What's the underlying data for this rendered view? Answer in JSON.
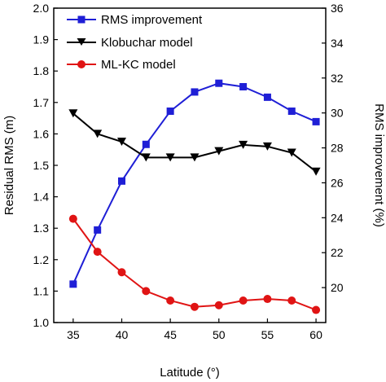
{
  "chart_data": {
    "type": "line",
    "xlabel": "Latitude (°)",
    "ylabel_left": "Residual RMS (m)",
    "ylabel_right": "RMS improvement (%)",
    "xlim": [
      33,
      61
    ],
    "ylim_left": [
      1.0,
      2.0
    ],
    "ylim_right": [
      18,
      36
    ],
    "x_ticks": [
      35,
      40,
      45,
      50,
      55,
      60
    ],
    "y_ticks_left": [
      1.0,
      1.1,
      1.2,
      1.3,
      1.4,
      1.5,
      1.6,
      1.7,
      1.8,
      1.9,
      2.0
    ],
    "y_ticks_right": [
      20,
      22,
      24,
      26,
      28,
      30,
      32,
      34,
      36
    ],
    "y_tick_labels_left": [
      "1.0",
      "1.1",
      "1.2",
      "1.3",
      "1.4",
      "1.5",
      "1.6",
      "1.7",
      "1.8",
      "1.9",
      "2.0"
    ],
    "y_tick_labels_right": [
      "20",
      "22",
      "24",
      "26",
      "28",
      "30",
      "32",
      "34",
      "36"
    ],
    "x_tick_labels": [
      "35",
      "40",
      "45",
      "50",
      "55",
      "60"
    ],
    "grid": false,
    "legend_position": "top-left",
    "x": [
      35,
      37.5,
      40,
      42.5,
      45,
      47.5,
      50,
      52.5,
      55,
      57.5,
      60
    ],
    "series": [
      {
        "name": "RMS improvement",
        "axis": "right",
        "marker": "square",
        "color": "#1f1fd6",
        "values": [
          20.2,
          23.3,
          26.1,
          28.2,
          30.1,
          31.2,
          31.7,
          31.5,
          30.9,
          30.1,
          29.5
        ]
      },
      {
        "name": "Klobuchar model",
        "axis": "left",
        "marker": "triangle-down",
        "color": "#000000",
        "values": [
          1.665,
          1.6,
          1.575,
          1.525,
          1.525,
          1.525,
          1.545,
          1.565,
          1.56,
          1.54,
          1.48
        ]
      },
      {
        "name": "ML-KC model",
        "axis": "left",
        "marker": "circle",
        "color": "#e01414",
        "values": [
          1.33,
          1.225,
          1.16,
          1.1,
          1.07,
          1.05,
          1.055,
          1.07,
          1.075,
          1.07,
          1.04
        ]
      }
    ]
  }
}
